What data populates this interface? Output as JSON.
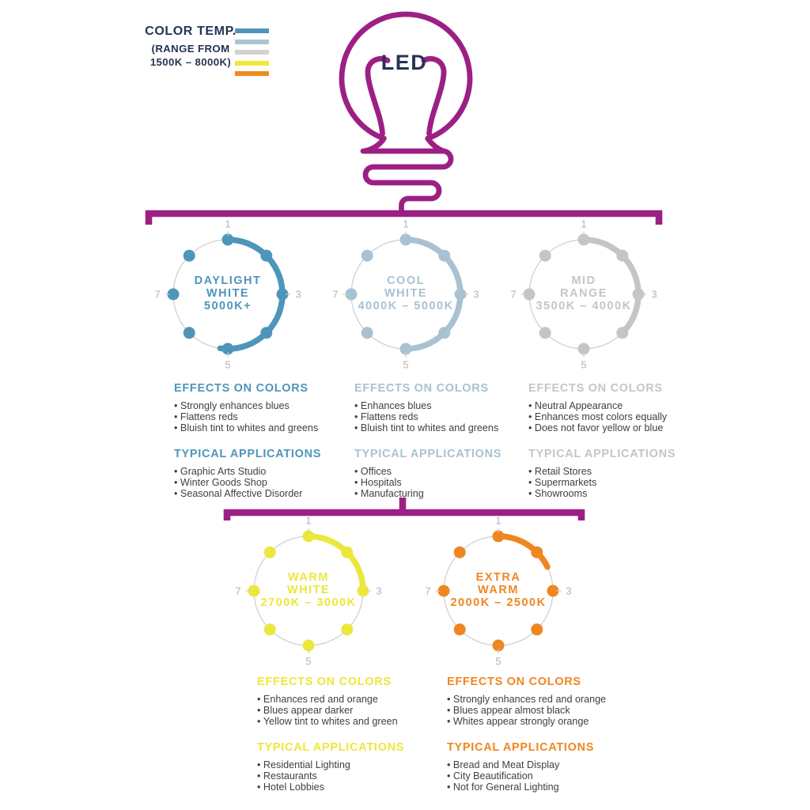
{
  "colors": {
    "magenta": "#9c2084",
    "navy": "#273354",
    "body_text": "#3f3f3f",
    "dial_ring": "#d0cdcd",
    "dial_number": "#b5b2b2"
  },
  "legend": {
    "title": "COLOR TEMP.",
    "subtitle_line1": "(RANGE FROM",
    "subtitle_line2": "1500K – 8000K)",
    "swatches": [
      {
        "name": "daylight-white",
        "color": "#4e95ba"
      },
      {
        "name": "cool-white",
        "color": "#abc4d2"
      },
      {
        "name": "mid-range",
        "color": "#d2d0d0"
      },
      {
        "name": "warm-white",
        "color": "#f0e93c"
      },
      {
        "name": "extra-warm",
        "color": "#f08a1d"
      }
    ]
  },
  "bulb": {
    "label": "LED"
  },
  "dial_scale": {
    "labels": [
      "1",
      "3",
      "5",
      "7"
    ]
  },
  "cards": [
    {
      "name_line1": "DAYLIGHT",
      "name_line2": "WHITE",
      "range": "5000K+",
      "color": "#4e95ba",
      "arc_end_deg": 188,
      "effects_title": "EFFECTS ON COLORS",
      "effects": [
        "Strongly enhances blues",
        "Flattens reds",
        "Bluish tint to whites and greens"
      ],
      "applications_title": "TYPICAL APPLICATIONS",
      "applications": [
        "Graphic Arts Studio",
        "Winter Goods Shop",
        "Seasonal Affective Disorder"
      ]
    },
    {
      "name_line1": "COOL",
      "name_line2": "WHITE",
      "range": "4000K – 5000K",
      "color": "#a9c2d1",
      "arc_end_deg": 182,
      "effects_title": "EFFECTS ON COLORS",
      "effects": [
        "Enhances blues",
        "Flattens reds",
        "Bluish tint to whites and greens"
      ],
      "applications_title": "TYPICAL APPLICATIONS",
      "applications": [
        "Offices",
        "Hospitals",
        "Manufacturing"
      ]
    },
    {
      "name_line1": "MID",
      "name_line2": "RANGE",
      "range": "3500K – 4000K",
      "color": "#c7c4c4",
      "arc_end_deg": 135,
      "effects_title": "EFFECTS ON COLORS",
      "effects": [
        "Neutral Appearance",
        "Enhances most colors equally",
        "Does not favor yellow or blue"
      ],
      "applications_title": "TYPICAL APPLICATIONS",
      "applications": [
        "Retail Stores",
        "Supermarkets",
        "Showrooms"
      ]
    },
    {
      "name_line1": "WARM",
      "name_line2": "WHITE",
      "range": "2700K – 3000K",
      "color": "#ece73c",
      "arc_end_deg": 92,
      "effects_title": "EFFECTS ON COLORS",
      "effects": [
        "Enhances red and orange",
        "Blues appear darker",
        "Yellow tint to whites and green"
      ],
      "applications_title": "TYPICAL APPLICATIONS",
      "applications": [
        "Residential Lighting",
        "Restaurants",
        "Hotel Lobbies"
      ]
    },
    {
      "name_line1": "EXTRA",
      "name_line2": "WARM",
      "range": "2000K – 2500K",
      "color": "#ee8721",
      "arc_end_deg": 64,
      "effects_title": "EFFECTS ON COLORS",
      "effects": [
        "Strongly enhances red and orange",
        "Blues appear almost black",
        "Whites appear strongly orange"
      ],
      "applications_title": "TYPICAL APPLICATIONS",
      "applications": [
        "Bread and Meat Display",
        "City Beautification",
        "Not for General Lighting"
      ]
    }
  ]
}
